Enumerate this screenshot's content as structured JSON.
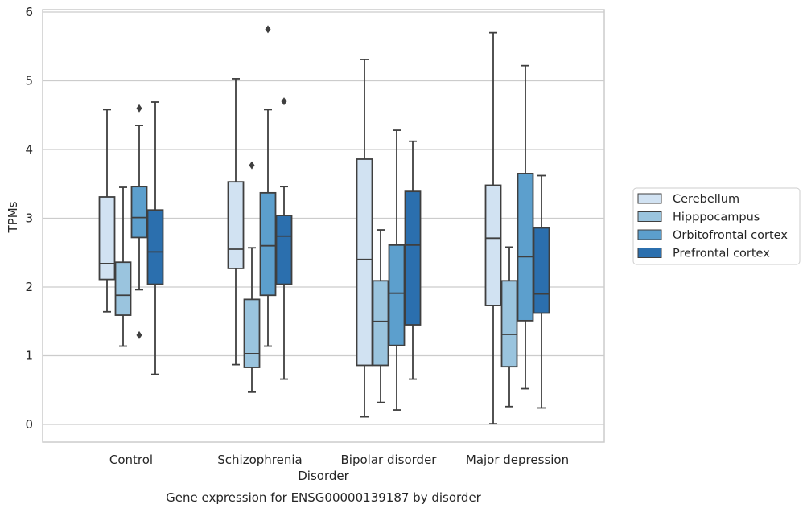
{
  "chart_data": {
    "type": "box",
    "title": "",
    "caption": "Gene expression for ENSG00000139187 by disorder",
    "xlabel": "Disorder",
    "ylabel": "TPMs",
    "ylim": [
      -0.26,
      6.05
    ],
    "yticks": [
      0,
      1,
      2,
      3,
      4,
      5,
      6
    ],
    "grid": true,
    "legend_position": "right",
    "categories": [
      "Control",
      "Schizophrenia",
      "Bipolar disorder",
      "Major depression"
    ],
    "series": [
      {
        "name": "Cerebellum",
        "color": "#d1e2f2",
        "boxes": [
          {
            "whisker_low": 1.64,
            "q1": 2.11,
            "median": 2.34,
            "q3": 3.31,
            "whisker_high": 4.58,
            "outliers": []
          },
          {
            "whisker_low": 0.87,
            "q1": 2.27,
            "median": 2.55,
            "q3": 3.53,
            "whisker_high": 5.03,
            "outliers": []
          },
          {
            "whisker_low": 0.11,
            "q1": 0.86,
            "median": 2.4,
            "q3": 3.86,
            "whisker_high": 5.31,
            "outliers": []
          },
          {
            "whisker_low": 0.01,
            "q1": 1.73,
            "median": 2.71,
            "q3": 3.48,
            "whisker_high": 5.7,
            "outliers": []
          }
        ]
      },
      {
        "name": "Hipppocampus",
        "color": "#9ac4de",
        "boxes": [
          {
            "whisker_low": 1.14,
            "q1": 1.59,
            "median": 1.88,
            "q3": 2.36,
            "whisker_high": 3.45,
            "outliers": []
          },
          {
            "whisker_low": 0.47,
            "q1": 0.83,
            "median": 1.03,
            "q3": 1.82,
            "whisker_high": 2.57,
            "outliers": [
              3.77
            ]
          },
          {
            "whisker_low": 0.32,
            "q1": 0.86,
            "median": 1.5,
            "q3": 2.09,
            "whisker_high": 2.83,
            "outliers": []
          },
          {
            "whisker_low": 0.26,
            "q1": 0.84,
            "median": 1.31,
            "q3": 2.09,
            "whisker_high": 2.58,
            "outliers": []
          }
        ]
      },
      {
        "name": "Orbitofrontal cortex",
        "color": "#5c9fcd",
        "boxes": [
          {
            "whisker_low": 1.96,
            "q1": 2.72,
            "median": 3.01,
            "q3": 3.46,
            "whisker_high": 4.35,
            "outliers": [
              4.6,
              1.3
            ]
          },
          {
            "whisker_low": 1.14,
            "q1": 1.88,
            "median": 2.6,
            "q3": 3.37,
            "whisker_high": 4.58,
            "outliers": [
              5.75
            ]
          },
          {
            "whisker_low": 0.21,
            "q1": 1.15,
            "median": 1.91,
            "q3": 2.61,
            "whisker_high": 4.28,
            "outliers": []
          },
          {
            "whisker_low": 0.52,
            "q1": 1.51,
            "median": 2.44,
            "q3": 3.65,
            "whisker_high": 5.22,
            "outliers": []
          }
        ]
      },
      {
        "name": "Prefrontal cortex",
        "color": "#2b6fae",
        "boxes": [
          {
            "whisker_low": 0.73,
            "q1": 2.04,
            "median": 2.51,
            "q3": 3.12,
            "whisker_high": 4.69,
            "outliers": []
          },
          {
            "whisker_low": 0.66,
            "q1": 2.04,
            "median": 2.74,
            "q3": 3.04,
            "whisker_high": 3.46,
            "outliers": [
              4.7
            ]
          },
          {
            "whisker_low": 0.66,
            "q1": 1.45,
            "median": 2.61,
            "q3": 3.39,
            "whisker_high": 4.12,
            "outliers": []
          },
          {
            "whisker_low": 0.24,
            "q1": 1.62,
            "median": 1.9,
            "q3": 2.86,
            "whisker_high": 3.62,
            "outliers": []
          }
        ]
      }
    ]
  }
}
